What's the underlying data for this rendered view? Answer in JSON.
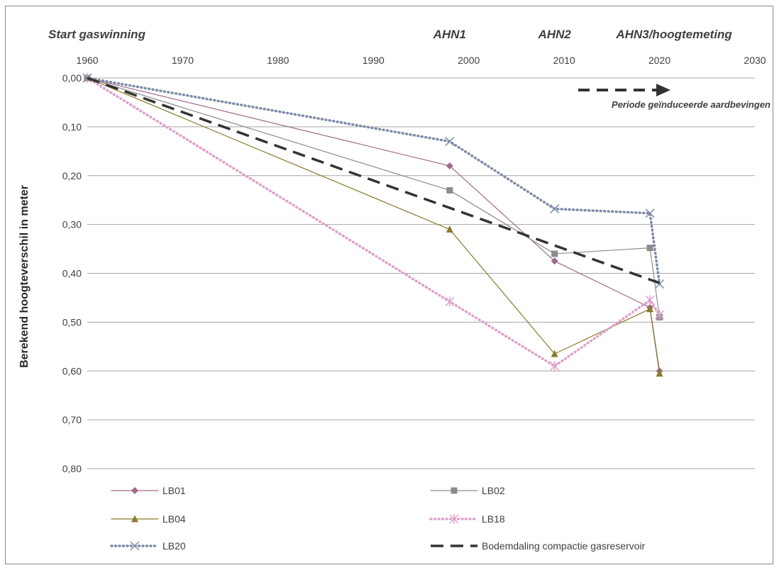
{
  "chart_data": {
    "type": "line",
    "title": "",
    "xlabel": "",
    "ylabel": "Berekend hoogteverschil in meter",
    "xlim": [
      1960,
      2030
    ],
    "ylim": [
      0,
      0.8
    ],
    "y_inverted": true,
    "x_axis_position": "top",
    "x_ticks": [
      "1960",
      "1970",
      "1980",
      "1990",
      "2000",
      "2010",
      "2020",
      "2030"
    ],
    "y_ticks": [
      "0,00",
      "0,10",
      "0,20",
      "0,30",
      "0,40",
      "0,50",
      "0,60",
      "0,70",
      "0,80"
    ],
    "grid": "horizontal",
    "legend_position": "bottom",
    "annotations": [
      {
        "text": "Start gaswinning",
        "x": 1960
      },
      {
        "text": "AHN1",
        "x": 1998
      },
      {
        "text": "AHN2",
        "x": 2009
      },
      {
        "text": "AHN3/hoogtemeting",
        "x": 2019
      }
    ],
    "period_arrow": {
      "text": "Periode geïnduceerde aardbevingen",
      "x_start": 2010,
      "x_end": 2020,
      "y": 0.025
    },
    "series": [
      {
        "name": "LB01",
        "color": "#9e6a8a",
        "marker": "diamond",
        "style": "solid",
        "x": [
          1960,
          1998,
          2009,
          2019,
          2020
        ],
        "y": [
          0.0,
          0.18,
          0.375,
          0.47,
          0.6
        ]
      },
      {
        "name": "LB02",
        "color": "#8c8c8c",
        "marker": "square",
        "style": "solid",
        "x": [
          1960,
          1998,
          2009,
          2019,
          2020
        ],
        "y": [
          0.0,
          0.23,
          0.36,
          0.348,
          0.49
        ]
      },
      {
        "name": "LB04",
        "color": "#8b7a2a",
        "marker": "triangle",
        "style": "solid",
        "x": [
          1960,
          1998,
          2009,
          2019,
          2020
        ],
        "y": [
          0.0,
          0.31,
          0.565,
          0.473,
          0.605
        ]
      },
      {
        "name": "LB18",
        "color": "#e0a0cc",
        "marker": "asterisk",
        "style": "dotted",
        "x": [
          1960,
          1998,
          2009,
          2019,
          2020
        ],
        "y": [
          0.0,
          0.458,
          0.59,
          0.455,
          0.485
        ]
      },
      {
        "name": "LB20",
        "color": "#7d8ba6",
        "marker": "x",
        "style": "dotted",
        "x": [
          1960,
          1998,
          2009,
          2019,
          2020
        ],
        "y": [
          0.0,
          0.13,
          0.268,
          0.277,
          0.422
        ]
      },
      {
        "name": "Bodemdaling compactie gasreservoir",
        "color": "#333333",
        "marker": "none",
        "style": "dashed",
        "x": [
          1960,
          2020
        ],
        "y": [
          0.0,
          0.42
        ]
      }
    ]
  }
}
